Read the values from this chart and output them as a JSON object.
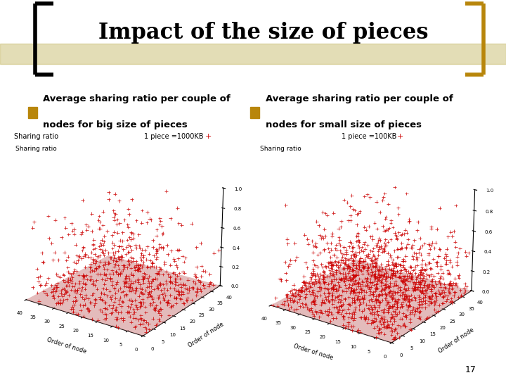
{
  "title": "Impact of the size of pieces",
  "title_fontsize": 22,
  "background_color": "#ffffff",
  "bullet_color": "#b8860b",
  "bracket_color_left": "#000000",
  "bracket_color_right": "#b8860b",
  "text_color": "#000000",
  "label1_line1": "Average sharing ratio per couple of",
  "label1_line2": "nodes for big size of pieces",
  "label2_line1": "Average sharing ratio per couple of",
  "label2_line2": "nodes for small size of pieces",
  "label_fontsize": 9.5,
  "subtitle1": "1 piece =1000KB",
  "subtitle2": "1 piece =100KB",
  "sharing_ratio_label": "Sharing ratio",
  "xlabel": "Order of node",
  "ylabel": "Order of node",
  "n_points_big": 800,
  "n_points_small": 1500,
  "marker_color": "#cc0000",
  "marker": "+",
  "page_number": "17",
  "header_line_color": "#c8bc6e",
  "floor_color": "#ff8888"
}
